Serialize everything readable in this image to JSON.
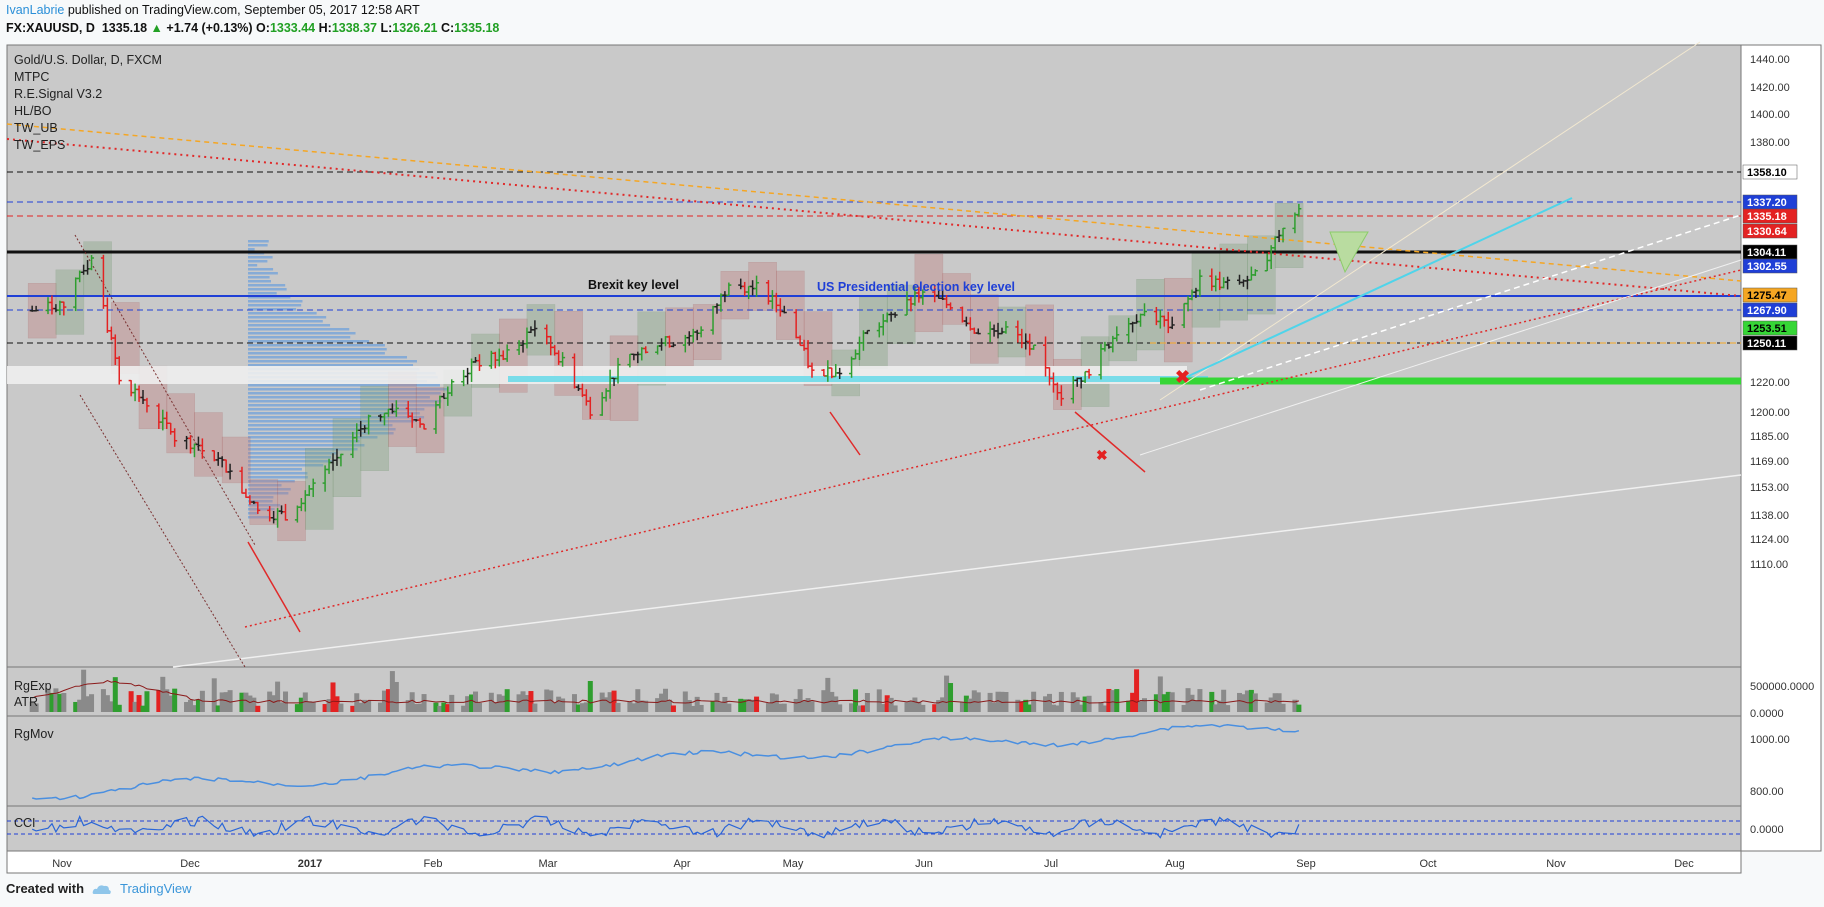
{
  "header": {
    "author": "IvanLabrie",
    "published": "published on TradingView.com, September 05, 2017 12:58 ART",
    "symbol": "FX:XAUUSD, D",
    "price": "1335.18",
    "change": "+1.74 (+0.13%)",
    "o_label": "O:",
    "o": "1333.44",
    "h_label": "H:",
    "h": "1338.37",
    "l_label": "L:",
    "l": "1326.21",
    "c_label": "C:",
    "c": "1335.18"
  },
  "legend": [
    "Gold/U.S. Dollar, D, FXCM",
    "MTPC",
    "R.E.Signal V3.2",
    "HL/BO",
    "TW_UB",
    "TW_EPS"
  ],
  "annotations": {
    "brexit": "Brexit key level",
    "election": "US Presidential election key level"
  },
  "panes": {
    "rgexp": "RgExp",
    "atr": "ATR",
    "rgmov": "RgMov",
    "cci": "CCI"
  },
  "footer": {
    "created": "Created with",
    "brand": "TradingView"
  },
  "colors": {
    "bull": "#2f9e2f",
    "bear": "#e32222",
    "neutral": "#222222",
    "plot_bg": "#c9c9c9",
    "blue_line": "#1f3fd6"
  },
  "chart_data": {
    "type": "candlestick",
    "x_ticks": [
      "Nov",
      "Dec",
      "2017",
      "Feb",
      "Mar",
      "Apr",
      "May",
      "Jun",
      "Jul",
      "Aug",
      "Sep",
      "Oct",
      "Nov",
      "Dec"
    ],
    "y_ticks": [
      1440.0,
      1420.0,
      1400.0,
      1380.0,
      1358.1,
      1337.2,
      1335.18,
      1330.64,
      1304.11,
      1302.55,
      1275.47,
      1267.9,
      1253.51,
      1250.11,
      1220.0,
      1200.0,
      1185.0,
      1169.0,
      1153.0,
      1138.0,
      1124.0,
      1110.0
    ],
    "price_tags": [
      {
        "value": "1358.10",
        "bg": "#ffffff",
        "fg": "#000000"
      },
      {
        "value": "1337.20",
        "bg": "#1f3fd6",
        "fg": "#ffffff"
      },
      {
        "value": "1335.18",
        "bg": "#e32222",
        "fg": "#ffffff"
      },
      {
        "value": "1330.64",
        "bg": "#e32222",
        "fg": "#ffffff"
      },
      {
        "value": "1304.11",
        "bg": "#000000",
        "fg": "#ffffff"
      },
      {
        "value": "1302.55",
        "bg": "#1f3fd6",
        "fg": "#ffffff"
      },
      {
        "value": "1275.47",
        "bg": "#f5a623",
        "fg": "#000000"
      },
      {
        "value": "1267.90",
        "bg": "#1f3fd6",
        "fg": "#ffffff"
      },
      {
        "value": "1253.51",
        "bg": "#36d636",
        "fg": "#000000"
      },
      {
        "value": "1250.11",
        "bg": "#000000",
        "fg": "#ffffff"
      }
    ],
    "key_levels": [
      1358.1,
      1337.2,
      1335.18,
      1304.11,
      1267.9,
      1250.11
    ],
    "close_path": [
      [
        "2016-10-20",
        1268
      ],
      [
        "2016-10-28",
        1273
      ],
      [
        "2016-11-04",
        1303
      ],
      [
        "2016-11-11",
        1224
      ],
      [
        "2016-11-18",
        1206
      ],
      [
        "2016-11-25",
        1183
      ],
      [
        "2016-12-02",
        1177
      ],
      [
        "2016-12-09",
        1160
      ],
      [
        "2016-12-16",
        1133
      ],
      [
        "2016-12-23",
        1131
      ],
      [
        "2016-12-30",
        1151
      ],
      [
        "2017-01-06",
        1172
      ],
      [
        "2017-01-13",
        1196
      ],
      [
        "2017-01-20",
        1204
      ],
      [
        "2017-01-27",
        1190
      ],
      [
        "2017-02-03",
        1220
      ],
      [
        "2017-02-10",
        1234
      ],
      [
        "2017-02-17",
        1238
      ],
      [
        "2017-02-24",
        1257
      ],
      [
        "2017-03-03",
        1234
      ],
      [
        "2017-03-10",
        1202
      ],
      [
        "2017-03-17",
        1229
      ],
      [
        "2017-03-24",
        1244
      ],
      [
        "2017-03-31",
        1248
      ],
      [
        "2017-04-07",
        1254
      ],
      [
        "2017-04-14",
        1286
      ],
      [
        "2017-04-21",
        1283
      ],
      [
        "2017-04-28",
        1268
      ],
      [
        "2017-05-05",
        1227
      ],
      [
        "2017-05-12",
        1228
      ],
      [
        "2017-05-19",
        1253
      ],
      [
        "2017-05-26",
        1266
      ],
      [
        "2017-06-02",
        1280
      ],
      [
        "2017-06-09",
        1271
      ],
      [
        "2017-06-16",
        1254
      ],
      [
        "2017-06-23",
        1256
      ],
      [
        "2017-06-30",
        1241
      ],
      [
        "2017-07-07",
        1212
      ],
      [
        "2017-07-14",
        1228
      ],
      [
        "2017-07-21",
        1254
      ],
      [
        "2017-07-28",
        1268
      ],
      [
        "2017-08-04",
        1257
      ],
      [
        "2017-08-11",
        1289
      ],
      [
        "2017-08-18",
        1285
      ],
      [
        "2017-08-25",
        1291
      ],
      [
        "2017-09-01",
        1325
      ],
      [
        "2017-09-05",
        1335
      ]
    ],
    "rgexp": {
      "ticks": [
        "500000.0000",
        "0.0000"
      ]
    },
    "rgmov": {
      "ticks": [
        "1000.00",
        "800.00"
      ]
    },
    "cci": {
      "ticks": [
        "0.0000"
      ]
    }
  }
}
